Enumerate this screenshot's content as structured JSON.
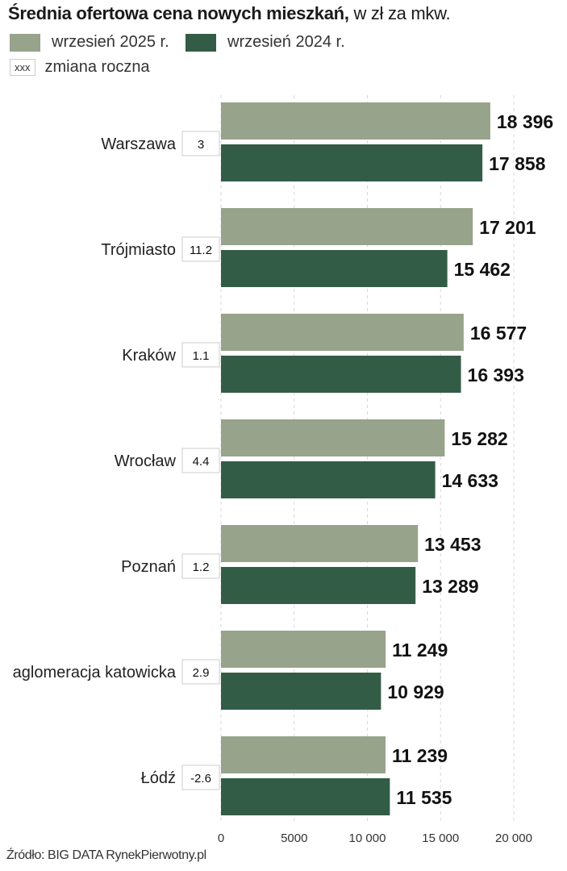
{
  "chart_data": {
    "type": "bar",
    "orientation": "horizontal",
    "title": "Średnia ofertowa cena nowych mieszkań,",
    "subtitle": "w zł za mkw.",
    "categories": [
      "Warszawa",
      "Trójmiasto",
      "Kraków",
      "Wrocław",
      "Poznań",
      "aglomeracja katowicka",
      "Łódź"
    ],
    "series": [
      {
        "name": "wrzesień 2025 r.",
        "color": "#97a38b",
        "values": [
          18396,
          17201,
          16577,
          15282,
          13453,
          11249,
          11239
        ],
        "labels": [
          "18 396",
          "17 201",
          "16 577",
          "15 282",
          "13 453",
          "11 249",
          "11 239"
        ]
      },
      {
        "name": "wrzesień 2024 r.",
        "color": "#335c46",
        "values": [
          17858,
          15462,
          16393,
          14633,
          13289,
          10929,
          11535
        ],
        "labels": [
          "17 858",
          "15 462",
          "16 393",
          "14 633",
          "13 289",
          "10 929",
          "11 535"
        ]
      }
    ],
    "annual_change": {
      "legend": "zmiana roczna",
      "legend_box": "xxx",
      "values": [
        "3",
        "11.2",
        "1.1",
        "4.4",
        "1.2",
        "2.9",
        "-2.6"
      ]
    },
    "xlim": [
      0,
      20000
    ],
    "xticks": [
      0,
      5000,
      10000,
      15000,
      20000
    ],
    "xtick_labels": [
      "0",
      "5000",
      "10 000",
      "15 000",
      "20 000"
    ],
    "grid": true,
    "legend_placement": "top-left"
  },
  "source": "Źródło: BIG DATA RynekPierwotny.pl"
}
